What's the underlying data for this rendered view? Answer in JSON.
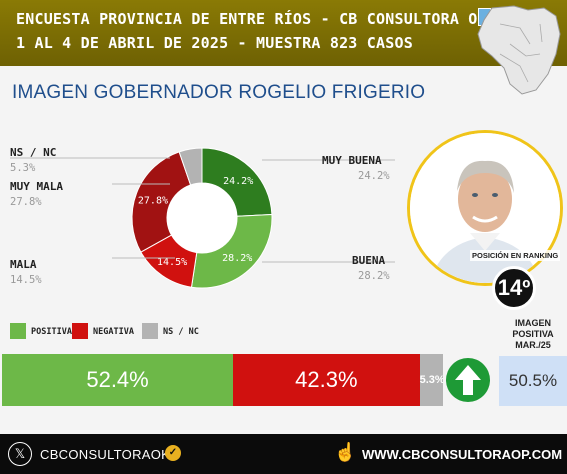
{
  "header": {
    "line1": "ENCUESTA PROVINCIA DE ENTRE RÍOS - CB CONSULTORA OP",
    "line2": "1 AL 4 DE ABRIL DE 2025 - MUESTRA 823 CASOS"
  },
  "subtitle": "IMAGEN GOBERNADOR  ROGELIO FRIGERIO",
  "donut_labels": {
    "ns_nc": {
      "label": "NS / NC",
      "value": "5.3%"
    },
    "muy_mala": {
      "label": "MUY MALA",
      "value": "27.8%"
    },
    "mala": {
      "label": "MALA",
      "value": "14.5%"
    },
    "muy_buena": {
      "label": "MUY BUENA",
      "value": "24.2%"
    },
    "buena": {
      "label": "BUENA",
      "value": "28.2%"
    }
  },
  "ranking": {
    "label": "POSICIÓN EN RANKING",
    "value": "14º"
  },
  "legend": {
    "positiva": "POSITIVA",
    "negativa": "NEGATIVA",
    "ns_nc": "NS / NC"
  },
  "previous": {
    "title": "IMAGEN POSITIVA MAR./25",
    "value": "50.5%"
  },
  "bars": {
    "positiva": "52.4%",
    "negativa": "42.3%",
    "ns_nc": "5.3%"
  },
  "colors": {
    "muy_buena": "#2e7d1f",
    "buena": "#6db848",
    "mala": "#d0110f",
    "muy_mala": "#a11212",
    "ns_nc": "#b3b3b3",
    "header": "#7a6c04",
    "positiva": "#6db848",
    "negativa": "#d0110f"
  },
  "footer": {
    "handle": "CBCONSULTORAOK",
    "site": "WWW.CBCONSULTORAOP.COM"
  },
  "icons": [
    "x-logo-icon",
    "verified-check-icon",
    "pointer-hand-icon",
    "up-arrow-icon",
    "entre-rios-map-icon",
    "flag-icon"
  ],
  "chart_data": [
    {
      "type": "pie",
      "categories": [
        "MUY BUENA",
        "BUENA",
        "MALA",
        "MUY MALA",
        "NS / NC"
      ],
      "values": [
        24.2,
        28.2,
        14.5,
        27.8,
        5.3
      ],
      "title": "IMAGEN GOBERNADOR  ROGELIO FRIGERIO",
      "donut": true
    },
    {
      "type": "bar",
      "orientation": "horizontal-stacked",
      "categories": [
        "POSITIVA",
        "NEGATIVA",
        "NS / NC"
      ],
      "values": [
        52.4,
        42.3,
        5.3
      ]
    }
  ]
}
